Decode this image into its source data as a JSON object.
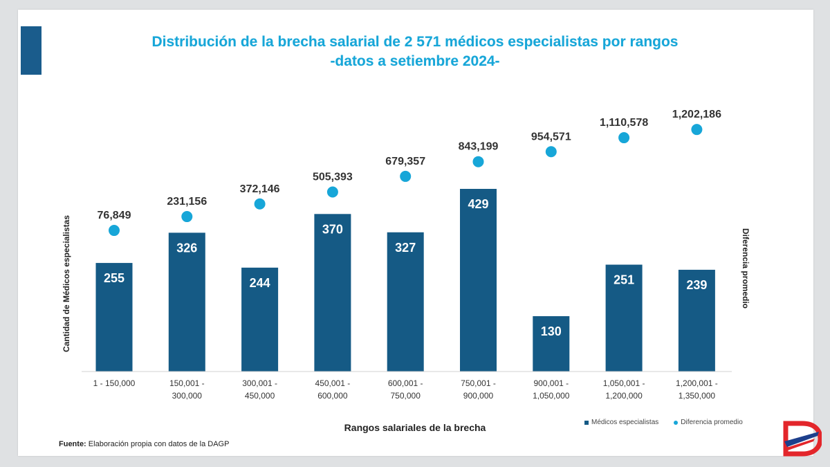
{
  "colors": {
    "bar": "#155a85",
    "dot": "#17a6d8",
    "title": "#17a6d8",
    "accent": "#1a5c8c",
    "logo_red": "#e3262b",
    "logo_blue": "#1d3f8c"
  },
  "source": {
    "label": "Fuente:",
    "text": "Elaboración propia con datos de la DAGP"
  },
  "logo": {
    "icon": "diario-extra-logo-icon"
  },
  "chart_data": {
    "type": "bar",
    "title": "Distribución de la brecha salarial de  2 571 médicos especialistas por rangos",
    "subtitle": "-datos a setiembre 2024-",
    "xlabel": "Rangos salariales de la brecha",
    "ylabel": "Cantidad de Médicos especialistas",
    "y2label": "Diferencia promedio",
    "categories": [
      [
        "1 - 150,000",
        ""
      ],
      [
        "150,001 -",
        "300,000"
      ],
      [
        "300,001 -",
        "450,000"
      ],
      [
        "450,001 -",
        "600,000"
      ],
      [
        "600,001 -",
        "750,000"
      ],
      [
        "750,001 -",
        "900,000"
      ],
      [
        "900,001 -",
        "1,050,000"
      ],
      [
        "1,050,001 -",
        "1,200,000"
      ],
      [
        "1,200,001 -",
        "1,350,000"
      ]
    ],
    "series": [
      {
        "name": "Médicos especialistas",
        "type": "bar",
        "values": [
          255,
          326,
          244,
          370,
          327,
          429,
          130,
          251,
          239
        ],
        "labels": [
          "255",
          "326",
          "244",
          "370",
          "327",
          "429",
          "130",
          "251",
          "239"
        ]
      },
      {
        "name": "Diferencia promedio",
        "type": "scatter",
        "values": [
          76849,
          231156,
          372146,
          505393,
          679357,
          843199,
          954571,
          1110578,
          1202186
        ],
        "labels": [
          "76,849",
          "231,156",
          "372,146",
          "505,393",
          "679,357",
          "843,199",
          "954,571",
          "1,110,578",
          "1,202,186"
        ]
      }
    ],
    "ylim": [
      0,
      429
    ],
    "y2lim": [
      0,
      1350000
    ],
    "grid": false,
    "legend": "bottom-right"
  }
}
